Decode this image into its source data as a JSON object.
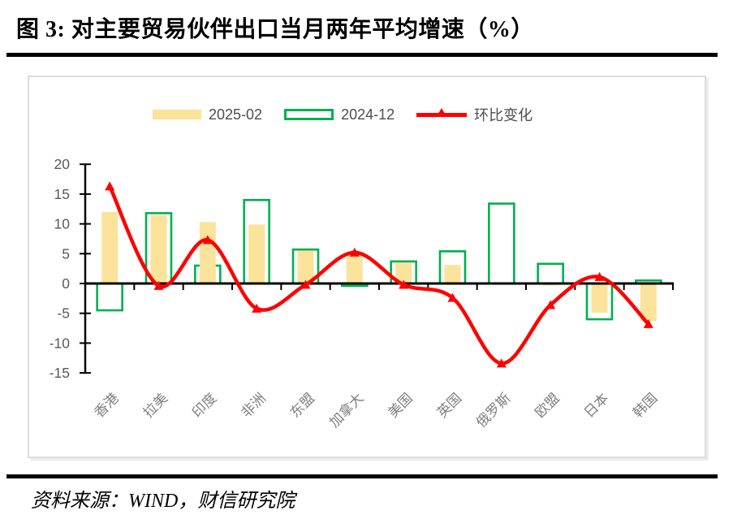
{
  "page": {
    "title": "图 3:  对主要贸易伙伴出口当月两年平均增速（%）",
    "source": "资料来源：WIND，财信研究院"
  },
  "chart_data": {
    "type": "bar",
    "subtype": "grouped-bars-with-line",
    "title": "对主要贸易伙伴出口当月两年平均增速（%）",
    "categories": [
      "香港",
      "拉美",
      "印度",
      "非洲",
      "东盟",
      "加拿大",
      "美国",
      "英国",
      "俄罗斯",
      "欧盟",
      "日本",
      "韩国"
    ],
    "series": [
      {
        "name": "2025-02",
        "type": "bar",
        "style": "filled",
        "color": "#FBE39B",
        "values": [
          12.0,
          11.5,
          10.3,
          9.9,
          5.5,
          4.8,
          3.5,
          3.1,
          0.0,
          -0.3,
          -4.9,
          -6.3
        ]
      },
      {
        "name": "2024-12",
        "type": "bar",
        "style": "outline",
        "color": "#00AF50",
        "values": [
          -4.5,
          11.8,
          3.0,
          14.0,
          5.7,
          -0.4,
          3.7,
          5.4,
          13.4,
          3.3,
          -6.0,
          0.5
        ]
      },
      {
        "name": "环比变化",
        "type": "line",
        "style": "smooth",
        "marker": "triangle",
        "color": "#FF0000",
        "values": [
          16.3,
          -0.4,
          7.3,
          -4.2,
          -0.2,
          5.2,
          -0.2,
          -2.4,
          -13.4,
          -3.6,
          1.1,
          -6.8
        ]
      }
    ],
    "ylim": [
      -15,
      20
    ],
    "yticks": [
      20,
      15,
      10,
      5,
      0,
      -5,
      -10,
      -15
    ],
    "grid": false,
    "legend_position": "top-center",
    "colors": {
      "axis": "#000000",
      "y_tick_labels": "#595959",
      "x_tick_labels": "#7f7f7f",
      "legend_text": "#4d4d4d"
    }
  }
}
